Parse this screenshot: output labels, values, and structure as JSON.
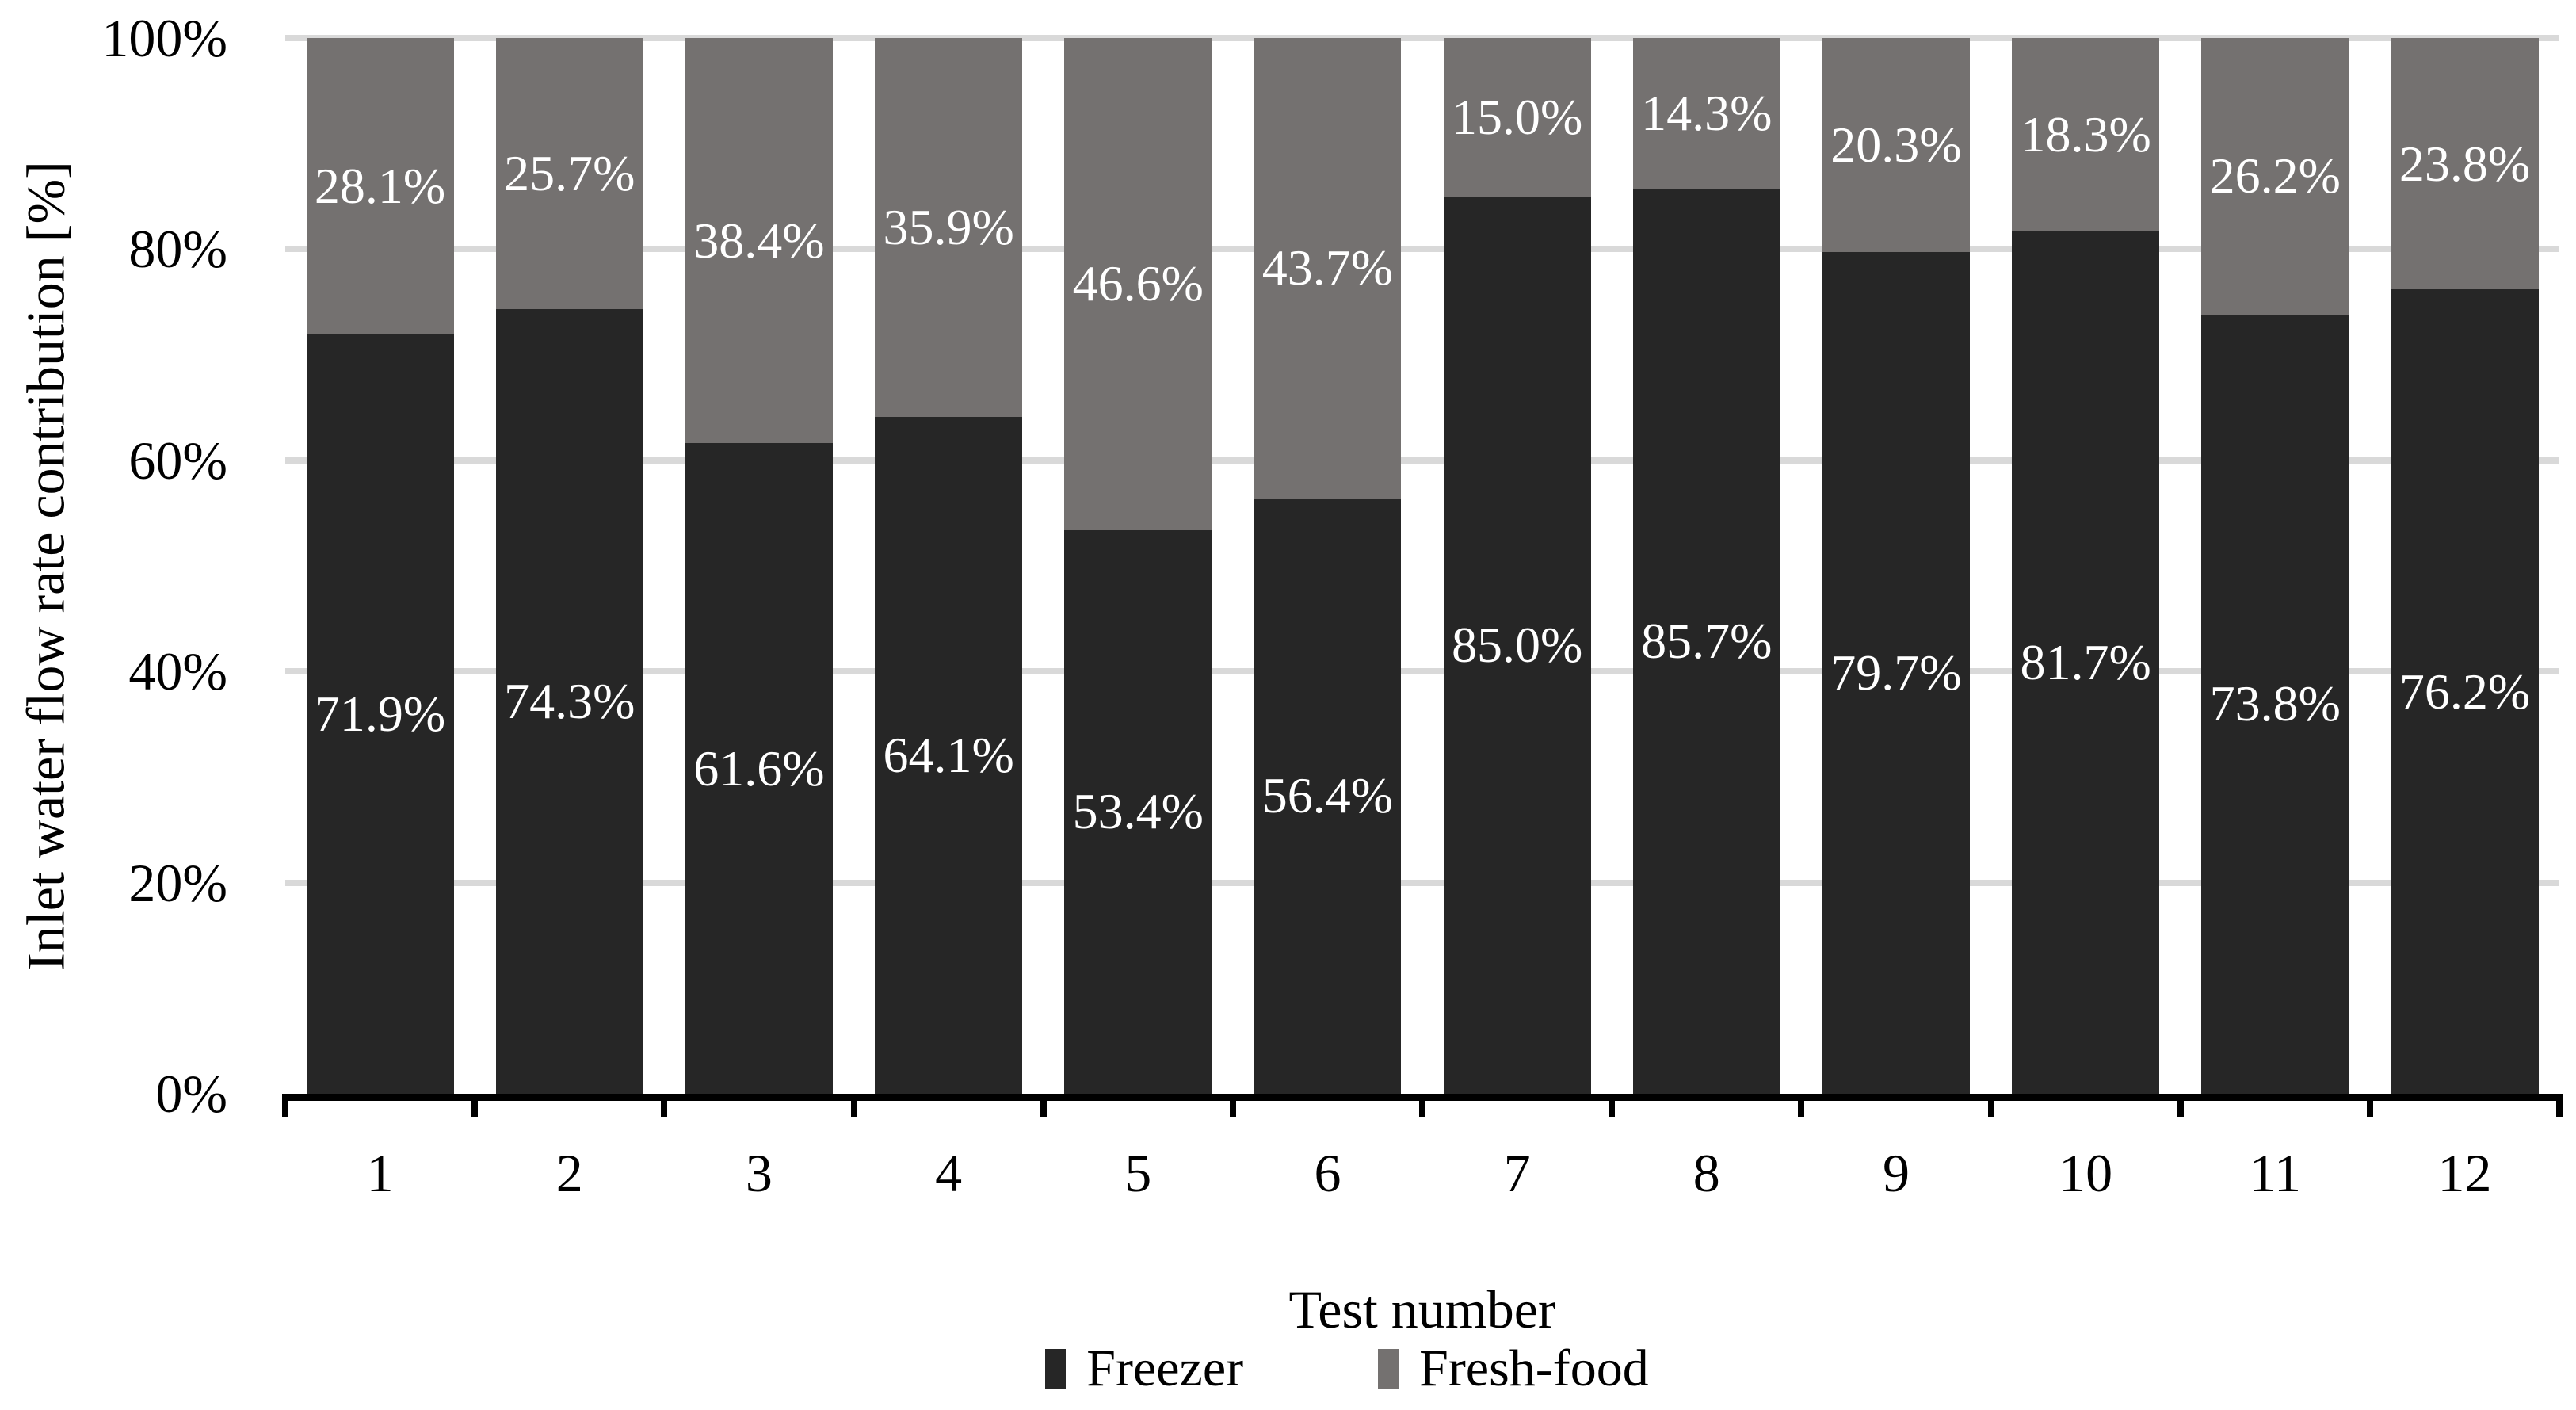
{
  "chart_data": {
    "type": "bar",
    "stacked": true,
    "orientation": "vertical",
    "categories": [
      "1",
      "2",
      "3",
      "4",
      "5",
      "6",
      "7",
      "8",
      "9",
      "10",
      "11",
      "12"
    ],
    "series": [
      {
        "name": "Freezer",
        "color": "#262626",
        "values": [
          71.9,
          74.3,
          61.6,
          64.1,
          53.4,
          56.4,
          85.0,
          85.7,
          79.7,
          81.7,
          73.8,
          76.2
        ],
        "labels": [
          "71.9%",
          "74.3%",
          "61.6%",
          "64.1%",
          "53.4%",
          "56.4%",
          "85.0%",
          "85.7%",
          "79.7%",
          "81.7%",
          "73.8%",
          "76.2%"
        ]
      },
      {
        "name": "Fresh-food",
        "color": "#747170",
        "values": [
          28.1,
          25.7,
          38.4,
          35.9,
          46.6,
          43.7,
          15.0,
          14.3,
          20.3,
          18.3,
          26.2,
          23.8
        ],
        "labels": [
          "28.1%",
          "25.7%",
          "38.4%",
          "35.9%",
          "46.6%",
          "43.7%",
          "15.0%",
          "14.3%",
          "20.3%",
          "18.3%",
          "26.2%",
          "23.8%"
        ]
      }
    ],
    "xlabel": "Test number",
    "ylabel": "Inlet water flow rate contribution [%]",
    "ylim": [
      0,
      100
    ],
    "yticks": [
      "0%",
      "20%",
      "40%",
      "60%",
      "80%",
      "100%"
    ],
    "ytick_values": [
      0,
      20,
      40,
      60,
      80,
      100
    ],
    "grid": true,
    "legend_position": "bottom",
    "data_label_color": "#ffffff",
    "gridline_color": "#d9d9d9",
    "axis_color": "#000000",
    "background_color": "#ffffff"
  }
}
